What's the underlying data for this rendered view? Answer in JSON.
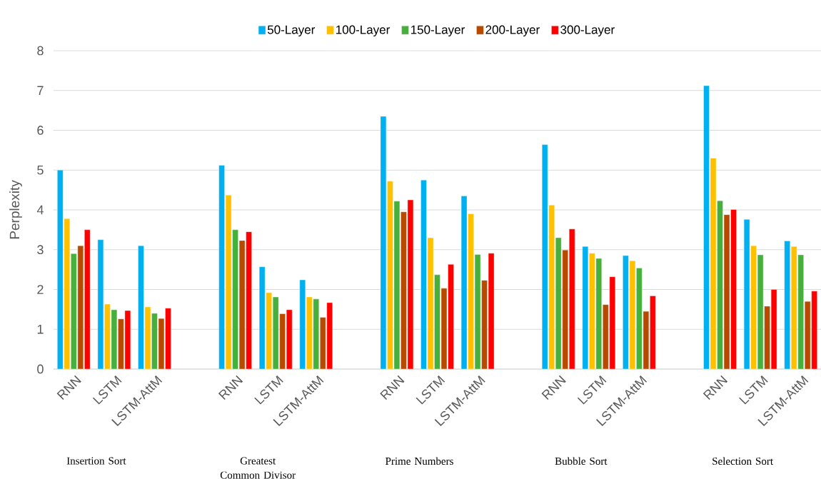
{
  "chart_data": {
    "type": "bar",
    "ylabel": "Perplexity",
    "categories": [
      "RNN",
      "LSTM",
      "LSTM-AttM",
      null,
      "RNN",
      "LSTM",
      "LSTM-AttM",
      null,
      "RNN",
      "LSTM",
      "LSTM-AttM",
      null,
      "RNN",
      "LSTM",
      "LSTM-AttM",
      null,
      "RNN",
      "LSTM",
      "LSTM-AttM"
    ],
    "series": [
      {
        "name": "50-Layer",
        "color": "#00b0f0",
        "values": [
          5.0,
          3.25,
          3.1,
          null,
          5.12,
          2.57,
          2.24,
          null,
          6.35,
          4.75,
          4.35,
          null,
          5.64,
          3.08,
          2.85,
          null,
          7.12,
          3.76,
          3.22
        ]
      },
      {
        "name": "100-Layer",
        "color": "#ffc000",
        "values": [
          3.78,
          1.63,
          1.56,
          null,
          4.37,
          1.92,
          1.81,
          null,
          4.72,
          3.3,
          3.9,
          null,
          4.12,
          2.91,
          2.72,
          null,
          5.3,
          3.1,
          3.08
        ]
      },
      {
        "name": "150-Layer",
        "color": "#47b03d",
        "values": [
          2.9,
          1.49,
          1.4,
          null,
          3.5,
          1.81,
          1.76,
          null,
          4.22,
          2.37,
          2.88,
          null,
          3.3,
          2.78,
          2.54,
          null,
          4.23,
          2.87,
          2.87
        ]
      },
      {
        "name": "200-Layer",
        "color": "#b84a00",
        "values": [
          3.1,
          1.26,
          1.27,
          null,
          3.23,
          1.39,
          1.3,
          null,
          3.95,
          2.03,
          2.23,
          null,
          2.99,
          1.62,
          1.45,
          null,
          3.88,
          1.58,
          1.7
        ]
      },
      {
        "name": "300-Layer",
        "color": "#ff0000",
        "values": [
          3.5,
          1.47,
          1.53,
          null,
          3.45,
          1.49,
          1.67,
          null,
          4.25,
          2.63,
          2.91,
          null,
          3.52,
          2.32,
          1.84,
          null,
          4.01,
          2.0,
          1.96
        ]
      }
    ],
    "ylim": [
      0,
      8
    ],
    "yticks": [
      0,
      1,
      2,
      3,
      4,
      5,
      6,
      7,
      8
    ],
    "grid": "y",
    "legend": "top",
    "annotations": [
      "Insertion Sort",
      "Greatest Common Divisor",
      "Prime Numbers",
      "Bubble Sort",
      "Selection Sort"
    ]
  }
}
